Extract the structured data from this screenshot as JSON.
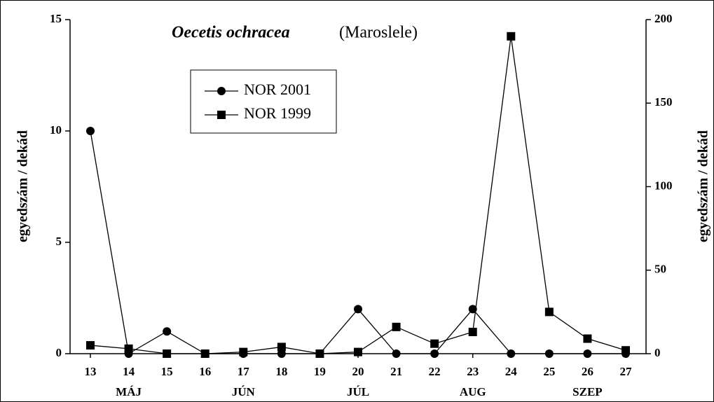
{
  "chart_data": {
    "type": "line",
    "title": "Oecetis ochracea",
    "subtitle": "(Maroslele)",
    "y_label": "egyedszám / dekád",
    "y2_label": "egyedszám / dekád",
    "categories": [
      "13",
      "14",
      "15",
      "16",
      "17",
      "18",
      "19",
      "20",
      "21",
      "22",
      "23",
      "24",
      "25",
      "26",
      "27"
    ],
    "months": [
      "MÁJ",
      "JÚN",
      "JÚL",
      "AUG",
      "SZEP"
    ],
    "ylim": [
      0,
      15
    ],
    "yticks": [
      0,
      5,
      10,
      15
    ],
    "y2lim": [
      0,
      200
    ],
    "y2ticks": [
      0,
      50,
      100,
      150,
      200
    ],
    "series": [
      {
        "name": "NOR 2001",
        "color": "#000000",
        "marker": "circle",
        "values": [
          10,
          0,
          1,
          0,
          0,
          0,
          0,
          2,
          0,
          0,
          2,
          0,
          0,
          0,
          0
        ]
      },
      {
        "name": "NOR 1999",
        "color": "#000000",
        "marker": "square",
        "axis": "y2",
        "values": [
          5,
          3,
          0,
          0,
          1,
          4,
          0,
          1,
          16,
          6,
          13,
          190,
          25,
          9,
          2
        ]
      }
    ]
  }
}
